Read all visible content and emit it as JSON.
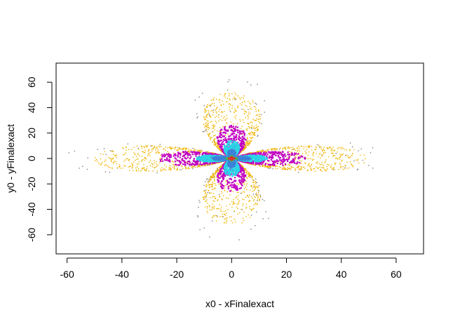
{
  "chart_data": {
    "type": "scatter",
    "title": "",
    "xlabel": "x0 - xFinalexact",
    "ylabel": "y0 - yFinalexact",
    "xlim": [
      -64,
      70
    ],
    "ylim": [
      -75,
      75
    ],
    "x_ticks": [
      -60,
      -40,
      -20,
      0,
      20,
      40,
      60
    ],
    "y_ticks": [
      -60,
      -40,
      -20,
      0,
      20,
      40,
      60
    ],
    "grid": false,
    "legend": "none",
    "series": [
      {
        "color": "#7f7f7f",
        "lobe_extent": {
          "horizontal": 62,
          "vertical": 68
        },
        "density": "sparse"
      },
      {
        "color": "#f0b400",
        "lobe_extent": {
          "horizontal": 50,
          "vertical": 52
        },
        "density": "medium"
      },
      {
        "color": "#c000c0",
        "lobe_extent": {
          "horizontal": 27,
          "vertical": 26
        },
        "density": "solid"
      },
      {
        "color": "#2ad4e6",
        "lobe_extent": {
          "horizontal": 13,
          "vertical": 14
        },
        "density": "solid"
      },
      {
        "color": "#3c82d8",
        "lobe_extent": {
          "horizontal": 7,
          "vertical": 7
        },
        "density": "solid"
      },
      {
        "color": "#4caf50",
        "lobe_extent": {
          "horizontal": 2,
          "vertical": 2
        },
        "density": "solid"
      },
      {
        "color": "#e03030",
        "lobe_extent": {
          "horizontal": 1,
          "vertical": 1
        },
        "density": "solid"
      }
    ]
  }
}
